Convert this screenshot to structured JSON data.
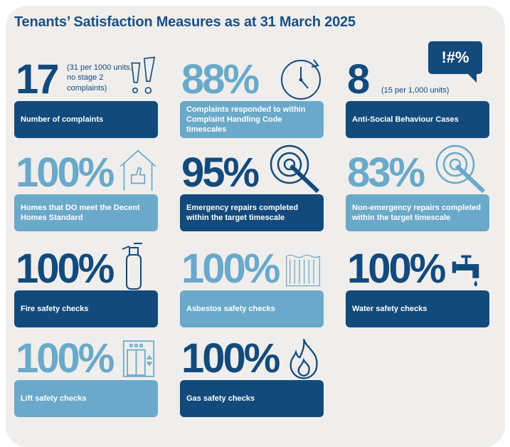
{
  "title": "Tenants’ Satisfaction Measures as at 31 March 2025",
  "colors": {
    "dark": "#124a7c",
    "light": "#6aa9c9",
    "background": "#efeeec"
  },
  "tiles": [
    {
      "value": "17",
      "note": "(31 per 1000 units, no stage 2 complaints)",
      "label": "Number of complaints",
      "icon": "exclamation-marks-icon"
    },
    {
      "value": "88%",
      "label": "Complaints responded to within Complaint Handling Code timescales",
      "icon": "clock-icon"
    },
    {
      "value": "8",
      "note": "(15 per 1,000 units)",
      "label": "Anti-Social Behaviour Cases",
      "icon": "speech-bubble-icon",
      "icon_text": "!#%"
    },
    {
      "value": "100%",
      "label": "Homes that DO meet the Decent Homes Standard",
      "icon": "house-thumbs-up-icon"
    },
    {
      "value": "95%",
      "label": "Emergency repairs completed within the target timescale",
      "icon": "target-icon"
    },
    {
      "value": "83%",
      "label": "Non-emergency repairs completed within the target timescale",
      "icon": "target-icon"
    },
    {
      "value": "100%",
      "label": "Fire safety checks",
      "icon": "fire-extinguisher-icon"
    },
    {
      "value": "100%",
      "label": "Asbestos safety checks",
      "icon": "asbestos-sheet-icon"
    },
    {
      "value": "100%",
      "label": "Water safety checks",
      "icon": "tap-icon"
    },
    {
      "value": "100%",
      "label": "Lift safety checks",
      "icon": "lift-icon"
    },
    {
      "value": "100%",
      "label": "Gas safety checks",
      "icon": "flame-icon"
    }
  ]
}
